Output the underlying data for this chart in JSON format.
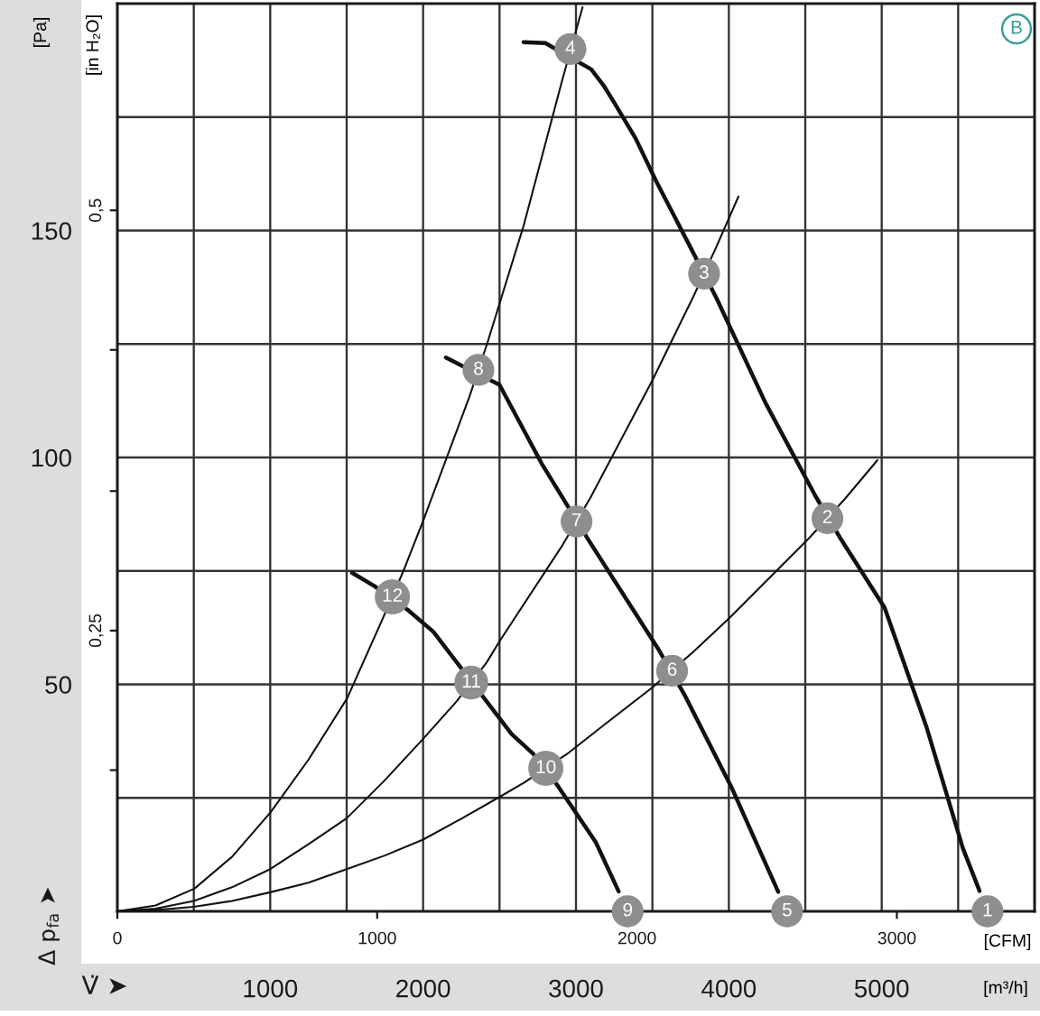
{
  "chart_data": {
    "type": "line",
    "xlabel": "[m³/h]",
    "x2label": "[CFM]",
    "ylabel": "[Pa]",
    "y2label": "[in H₂O]",
    "xlim": [
      0,
      6000
    ],
    "xticks": [
      {
        "value": 500,
        "label": null
      },
      1000,
      {
        "value": 1500,
        "label": null
      },
      2000,
      {
        "value": 2500,
        "label": null
      },
      3000,
      {
        "value": 3500,
        "label": null
      },
      4000,
      {
        "value": 4500,
        "label": null
      },
      5000,
      {
        "value": 5500,
        "label": null
      }
    ],
    "x2lim": [
      0,
      3530
    ],
    "x2ticks": [
      0,
      1000,
      2000,
      3000
    ],
    "ylim": [
      0,
      200
    ],
    "yticks": [
      {
        "value": 25,
        "label": null
      },
      50,
      {
        "value": 75,
        "label": null
      },
      100,
      {
        "value": 125,
        "label": null
      },
      150,
      {
        "value": 175,
        "label": null
      }
    ],
    "y2lim": [
      0.083,
      0.623
    ],
    "y2ticks": [
      {
        "value": 0.167,
        "label": null
      },
      {
        "value": 0.25,
        "label": "0,25"
      },
      {
        "value": 0.333,
        "label": null
      },
      {
        "value": 0.417,
        "label": null
      },
      {
        "value": 0.5,
        "label": "0,5"
      }
    ],
    "grid": true,
    "series": [
      {
        "color": "#111111",
        "x": [
          2657,
          2800,
          3100,
          3180,
          3248,
          3390,
          3523,
          3758,
          3918,
          4240,
          4565,
          4735,
          5019,
          5295,
          5531,
          5640
        ],
        "values": [
          191.5,
          191.3,
          185.5,
          182,
          178.3,
          170.3,
          161,
          145.7,
          135.2,
          112,
          91.6,
          81.9,
          66.9,
          40.4,
          13.9,
          4.5
        ]
      },
      {
        "color": "#111111",
        "x": [
          2149,
          2500,
          2775,
          3090,
          3540,
          3710,
          4015,
          4323
        ],
        "values": [
          122,
          116,
          98.7,
          81.4,
          57.7,
          47.7,
          27.5,
          4.3
        ]
      },
      {
        "color": "#111111",
        "x": [
          1535,
          1680,
          1900,
          2067,
          2578,
          2720,
          2880,
          3130,
          3279
        ],
        "values": [
          74.6,
          71.7,
          66.4,
          61.6,
          39.1,
          34.7,
          27.7,
          15.2,
          4.4
        ]
      },
      {
        "color": "#111111",
        "x": [
          0,
          250,
          504,
          750,
          1004,
          1250,
          1504,
          1724,
          1874,
          2000,
          2302,
          2422,
          2657,
          2909,
          3043
        ],
        "values": [
          0,
          1.3,
          5,
          12,
          21.9,
          33.4,
          47,
          63.6,
          75.2,
          86,
          113.3,
          125.4,
          151,
          183,
          199.2
        ]
      },
      {
        "color": "#111111",
        "x": [
          0,
          250,
          500,
          750,
          1000,
          1250,
          1500,
          1750,
          2000,
          2215,
          2415,
          2500,
          2914,
          3094,
          3500,
          3763,
          3913,
          4063
        ],
        "values": [
          0,
          0.6,
          2.3,
          5.3,
          9.3,
          14.8,
          20.5,
          28.9,
          38,
          46.1,
          54.8,
          59.5,
          80.8,
          91.1,
          117,
          135.1,
          146,
          157.5
        ]
      },
      {
        "color": "#111111",
        "x": [
          0,
          250,
          500,
          750,
          1000,
          1250,
          1500,
          1750,
          2000,
          2250,
          2500,
          2663,
          2943,
          3200,
          3499,
          3759,
          4000,
          4530,
          4760,
          4972
        ],
        "values": [
          0,
          0.3,
          1,
          2.3,
          4.2,
          6.3,
          9.3,
          12.3,
          15.8,
          20.4,
          25.2,
          28.4,
          34.7,
          41.5,
          49.3,
          56.9,
          64.5,
          82.4,
          90.9,
          99.4
        ]
      }
    ],
    "annotations": [
      "Δ p$_{fa}$ ➤",
      "V̇ ➤",
      "B",
      {
        "text": "1",
        "x": 5692,
        "y": 0
      },
      {
        "text": "2",
        "x": 4645,
        "y": 86.6
      },
      {
        "text": "3",
        "x": 3838,
        "y": 140.5
      },
      {
        "text": "4",
        "x": 2964,
        "y": 190
      },
      {
        "text": "5",
        "x": 4381,
        "y": 0
      },
      {
        "text": "6",
        "x": 3629,
        "y": 53
      },
      {
        "text": "7",
        "x": 3004,
        "y": 85.9
      },
      {
        "text": "8",
        "x": 2362,
        "y": 119.3
      },
      {
        "text": "9",
        "x": 3338,
        "y": 0
      },
      {
        "text": "10",
        "x": 2803,
        "y": 31.5
      },
      {
        "text": "11",
        "x": 2315,
        "y": 50.4
      },
      {
        "text": "12",
        "x": 1799,
        "y": 69.3
      }
    ]
  }
}
